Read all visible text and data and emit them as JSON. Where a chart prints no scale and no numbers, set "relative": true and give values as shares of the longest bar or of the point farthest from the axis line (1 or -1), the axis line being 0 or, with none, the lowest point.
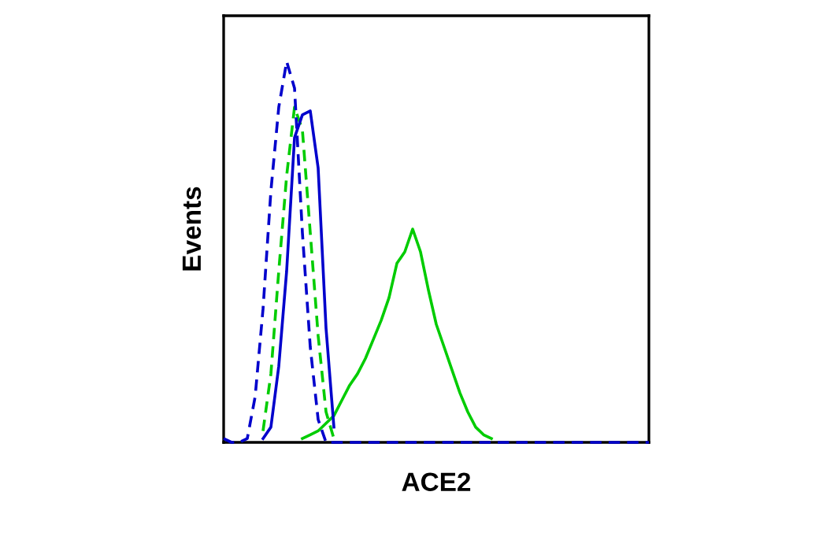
{
  "chart_data": {
    "type": "line",
    "xlabel": "ACE2",
    "ylabel": "Events",
    "relative": true,
    "grid": false,
    "legend": false,
    "categories": [
      null,
      null,
      null,
      null,
      null,
      null,
      null,
      null,
      null,
      null,
      null,
      null,
      null,
      null,
      null,
      null,
      null,
      null,
      null,
      null,
      null,
      null,
      null,
      null,
      null,
      null,
      null,
      null,
      null,
      null,
      null,
      null,
      null,
      null,
      null,
      null,
      null,
      null,
      null,
      null,
      null,
      null,
      null,
      null,
      null,
      null,
      null,
      null,
      null,
      null,
      null,
      null,
      null,
      null,
      null
    ],
    "series": [
      {
        "color": "#00cc00",
        "line_style": "solid",
        "values": [
          null,
          null,
          null,
          null,
          null,
          null,
          null,
          null,
          null,
          null,
          0.01,
          0.02,
          0.03,
          0.05,
          0.07,
          0.11,
          0.15,
          0.18,
          0.22,
          0.27,
          0.32,
          0.38,
          0.47,
          0.5,
          0.56,
          0.5,
          0.4,
          0.31,
          0.25,
          0.19,
          0.13,
          0.08,
          0.04,
          0.02,
          0.01,
          null,
          null,
          null,
          null,
          null,
          null,
          null,
          null,
          null,
          null,
          null,
          null,
          null,
          null,
          null,
          null,
          null,
          null,
          null,
          null
        ]
      },
      {
        "color": "#00cc00",
        "line_style": "dashed",
        "values": [
          null,
          null,
          null,
          null,
          null,
          0.03,
          0.18,
          0.45,
          0.7,
          0.88,
          0.82,
          0.55,
          0.28,
          0.08,
          0.01,
          null,
          null,
          null,
          null,
          null,
          null,
          null,
          null,
          null,
          null,
          null,
          null,
          null,
          null,
          null,
          null,
          null,
          null,
          null,
          null,
          null,
          null,
          null,
          null,
          null,
          null,
          null,
          null,
          null,
          null,
          null,
          null,
          null,
          null,
          null,
          null,
          null,
          null,
          null,
          null
        ]
      },
      {
        "color": "#0000cc",
        "line_style": "solid",
        "values": [
          null,
          null,
          null,
          null,
          null,
          0.01,
          0.04,
          0.2,
          0.45,
          0.8,
          0.86,
          0.87,
          0.72,
          0.3,
          0.04,
          null,
          null,
          null,
          null,
          null,
          null,
          null,
          null,
          null,
          null,
          null,
          null,
          null,
          null,
          null,
          null,
          null,
          null,
          null,
          null,
          null,
          null,
          null,
          null,
          null,
          null,
          null,
          null,
          null,
          null,
          null,
          null,
          null,
          null,
          null,
          null,
          null,
          null,
          null,
          null
        ]
      },
      {
        "color": "#0000cc",
        "line_style": "dashed",
        "values": [
          0.01,
          0,
          0,
          0.01,
          0.12,
          0.35,
          0.66,
          0.88,
          1.0,
          0.93,
          0.55,
          0.25,
          0.06,
          0,
          0,
          0,
          0,
          0,
          0,
          0,
          0,
          0,
          0,
          0,
          0,
          0,
          0,
          0,
          0,
          0,
          0,
          0,
          0,
          0,
          0,
          0,
          0,
          0,
          0,
          0,
          0,
          0,
          0,
          0,
          0,
          0,
          0,
          0,
          0,
          0,
          0,
          0,
          0,
          0,
          0
        ]
      }
    ]
  }
}
